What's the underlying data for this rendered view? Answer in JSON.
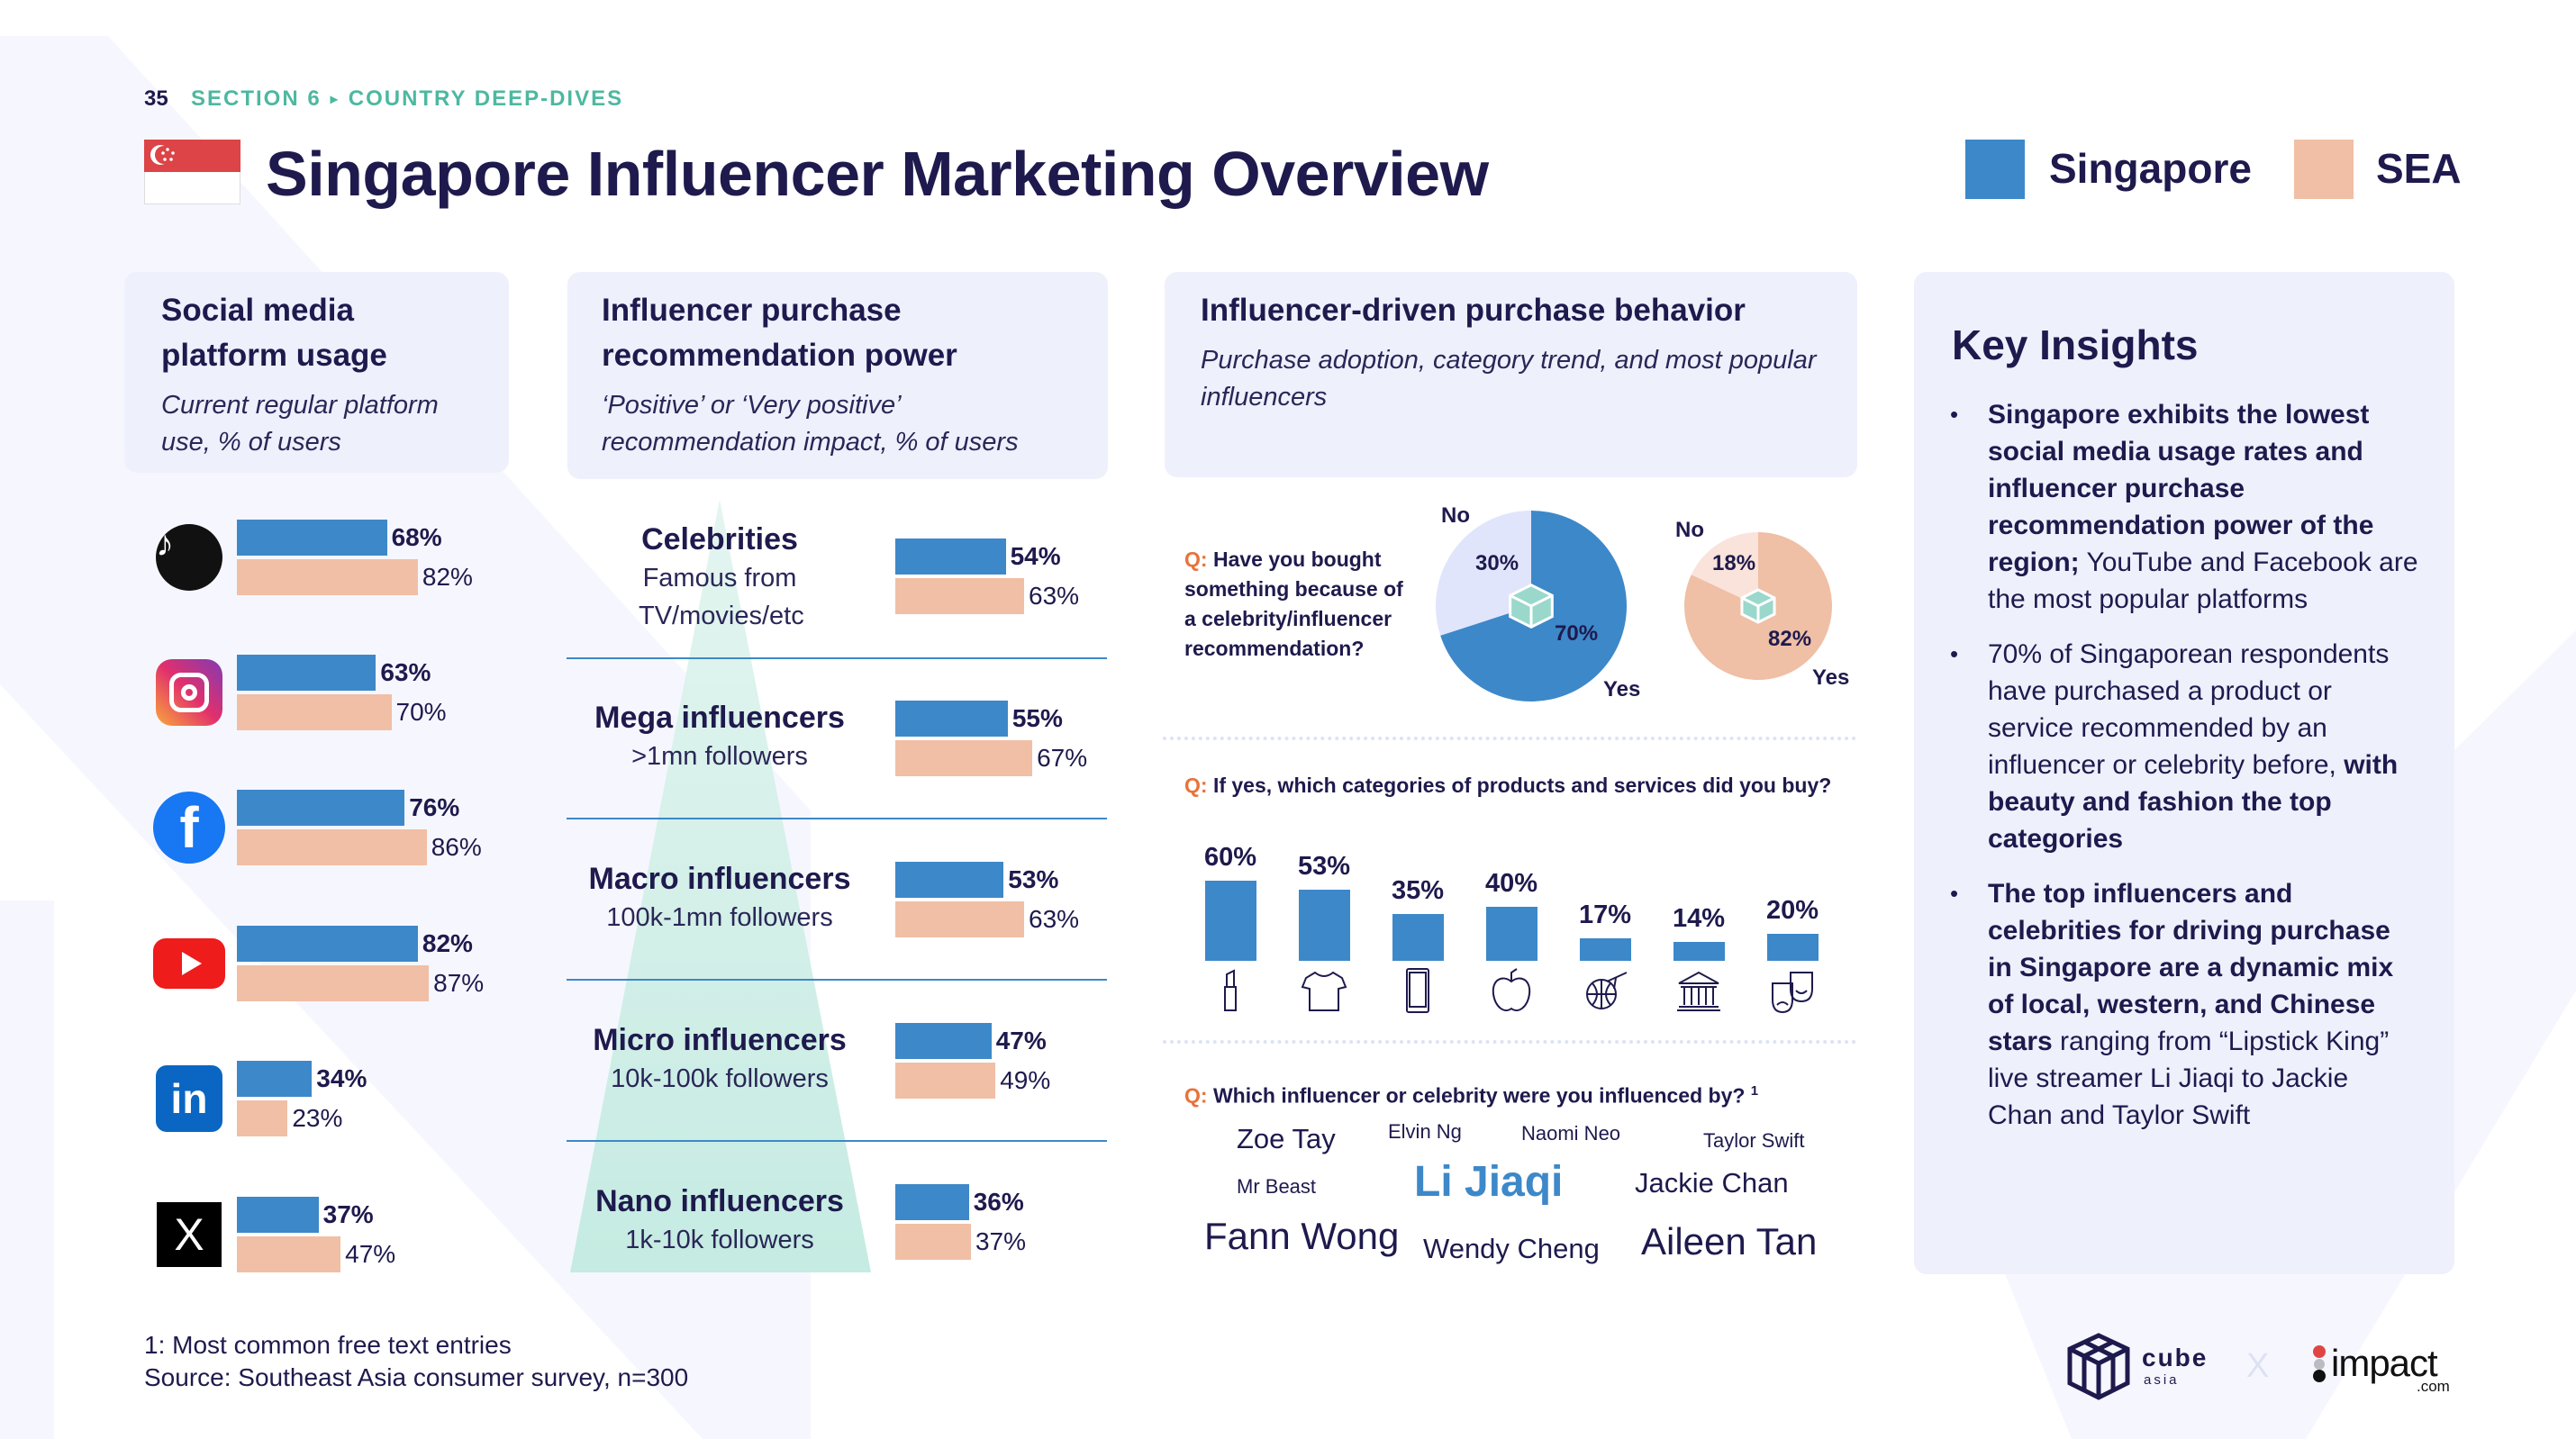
{
  "header": {
    "page_number": "35",
    "section": "SECTION 6",
    "breadcrumb_arrow": "▸",
    "subsection": "COUNTRY DEEP-DIVES",
    "title": "Singapore Influencer Marketing Overview",
    "legend": [
      {
        "label": "Singapore",
        "color": "#3d88c9"
      },
      {
        "label": "SEA",
        "color": "#f0bfa5"
      }
    ]
  },
  "colors": {
    "navy": "#1e1a4d",
    "singapore": "#3d88c9",
    "sea": "#f0bfa5",
    "accent_teal": "#4db8a0",
    "question_mark": "#e8733a"
  },
  "social": {
    "heading": "Social media platform usage",
    "subtitle": "Current regular platform use, % of users"
  },
  "purchase_power": {
    "heading": "Influencer purchase recommendation power",
    "subtitle": "‘Positive’ or ‘Very positive’ recommendation impact, % of users"
  },
  "behavior": {
    "heading": "Influencer-driven purchase behavior",
    "subtitle": "Purchase adoption, category trend, and most popular influencers",
    "q_prefix": "Q:",
    "q1": "Have you bought something because of a celebrity/influencer recommendation?",
    "q2": "If yes, which categories of products and services did you buy?",
    "q3": "Which influencer or celebrity were you influenced by?",
    "q3_footnote_mark": "1",
    "influencers": [
      "Zoe Tay",
      "Elvin Ng",
      "Naomi Neo",
      "Taylor Swift",
      "Mr Beast",
      "Li Jiaqi",
      "Jackie Chan",
      "Fann Wong",
      "Wendy Cheng",
      "Aileen Tan"
    ]
  },
  "chart_data": [
    {
      "type": "bar",
      "orientation": "horizontal",
      "categories": [
        "TikTok",
        "Instagram",
        "Facebook",
        "YouTube",
        "LinkedIn",
        "X"
      ],
      "category_icons": [
        "tiktok-icon",
        "instagram-icon",
        "facebook-icon",
        "youtube-icon",
        "linkedin-icon",
        "x-icon"
      ],
      "series": [
        {
          "name": "Singapore",
          "values": [
            68,
            63,
            76,
            82,
            34,
            37
          ],
          "labels": [
            "68%",
            "63%",
            "76%",
            "82%",
            "34%",
            "37%"
          ]
        },
        {
          "name": "SEA",
          "values": [
            82,
            70,
            86,
            87,
            23,
            47
          ],
          "labels": [
            "82%",
            "70%",
            "86%",
            "87%",
            "23%",
            "47%"
          ]
        }
      ]
    },
    {
      "type": "bar",
      "orientation": "horizontal",
      "categories": [
        "Celebrities",
        "Mega influencers",
        "Macro influencers",
        "Micro influencers",
        "Nano influencers"
      ],
      "category_subtitles": [
        "Famous from TV/movies/etc",
        ">1mn followers",
        "100k-1mn followers",
        "10k-100k followers",
        "1k-10k followers"
      ],
      "series": [
        {
          "name": "Singapore",
          "values": [
            54,
            55,
            53,
            47,
            36
          ],
          "labels": [
            "54%",
            "55%",
            "53%",
            "47%",
            "36%"
          ]
        },
        {
          "name": "SEA",
          "values": [
            63,
            67,
            63,
            49,
            37
          ],
          "labels": [
            "63%",
            "67%",
            "63%",
            "49%",
            "37%"
          ]
        }
      ]
    },
    {
      "type": "pie",
      "series_name": "Singapore",
      "slices": [
        {
          "label": "Yes",
          "value": 70,
          "text": "70%"
        },
        {
          "label": "No",
          "value": 30,
          "text": "30%"
        }
      ],
      "colors": [
        "#3d88c9",
        "#e1e5fb"
      ]
    },
    {
      "type": "pie",
      "series_name": "SEA",
      "slices": [
        {
          "label": "Yes",
          "value": 82,
          "text": "82%"
        },
        {
          "label": "No",
          "value": 18,
          "text": "18%"
        }
      ],
      "colors": [
        "#efbfa6",
        "#f9e3da"
      ]
    },
    {
      "type": "bar",
      "orientation": "vertical",
      "category_icons": [
        "lipstick-icon",
        "tshirt-icon",
        "smartphone-icon",
        "apple-icon",
        "travel-globe-icon",
        "bank-icon",
        "theater-masks-icon"
      ],
      "series": [
        {
          "name": "Singapore",
          "values": [
            60,
            53,
            35,
            40,
            17,
            14,
            20
          ],
          "labels": [
            "60%",
            "53%",
            "35%",
            "40%",
            "17%",
            "14%",
            "20%"
          ]
        }
      ]
    }
  ],
  "insights": {
    "title": "Key Insights",
    "b1_bold": "Singapore exhibits the lowest social media usage rates and influencer purchase recommendation power of the region;",
    "b1_rest": " YouTube and Facebook are the most popular platforms",
    "b2_rest": "70% of Singaporean respondents have purchased a product or service recommended by an influencer or celebrity before, ",
    "b2_bold": "with beauty and fashion the top categories",
    "b3_bold": "The top influencers and celebrities for driving purchase in Singapore are a dynamic mix of local, western, and Chinese stars",
    "b3_rest": " ranging from “Lipstick King” live streamer Li Jiaqi to Jackie Chan and Taylor Swift"
  },
  "footer": {
    "footnote": "1: Most common free text entries",
    "source": "Source: Southeast Asia consumer survey, n=300",
    "logo_cube": "cube",
    "logo_cube_sub": "asia",
    "logo_x": "X",
    "logo_impact": "impact",
    "logo_impact_sub": ".com"
  }
}
